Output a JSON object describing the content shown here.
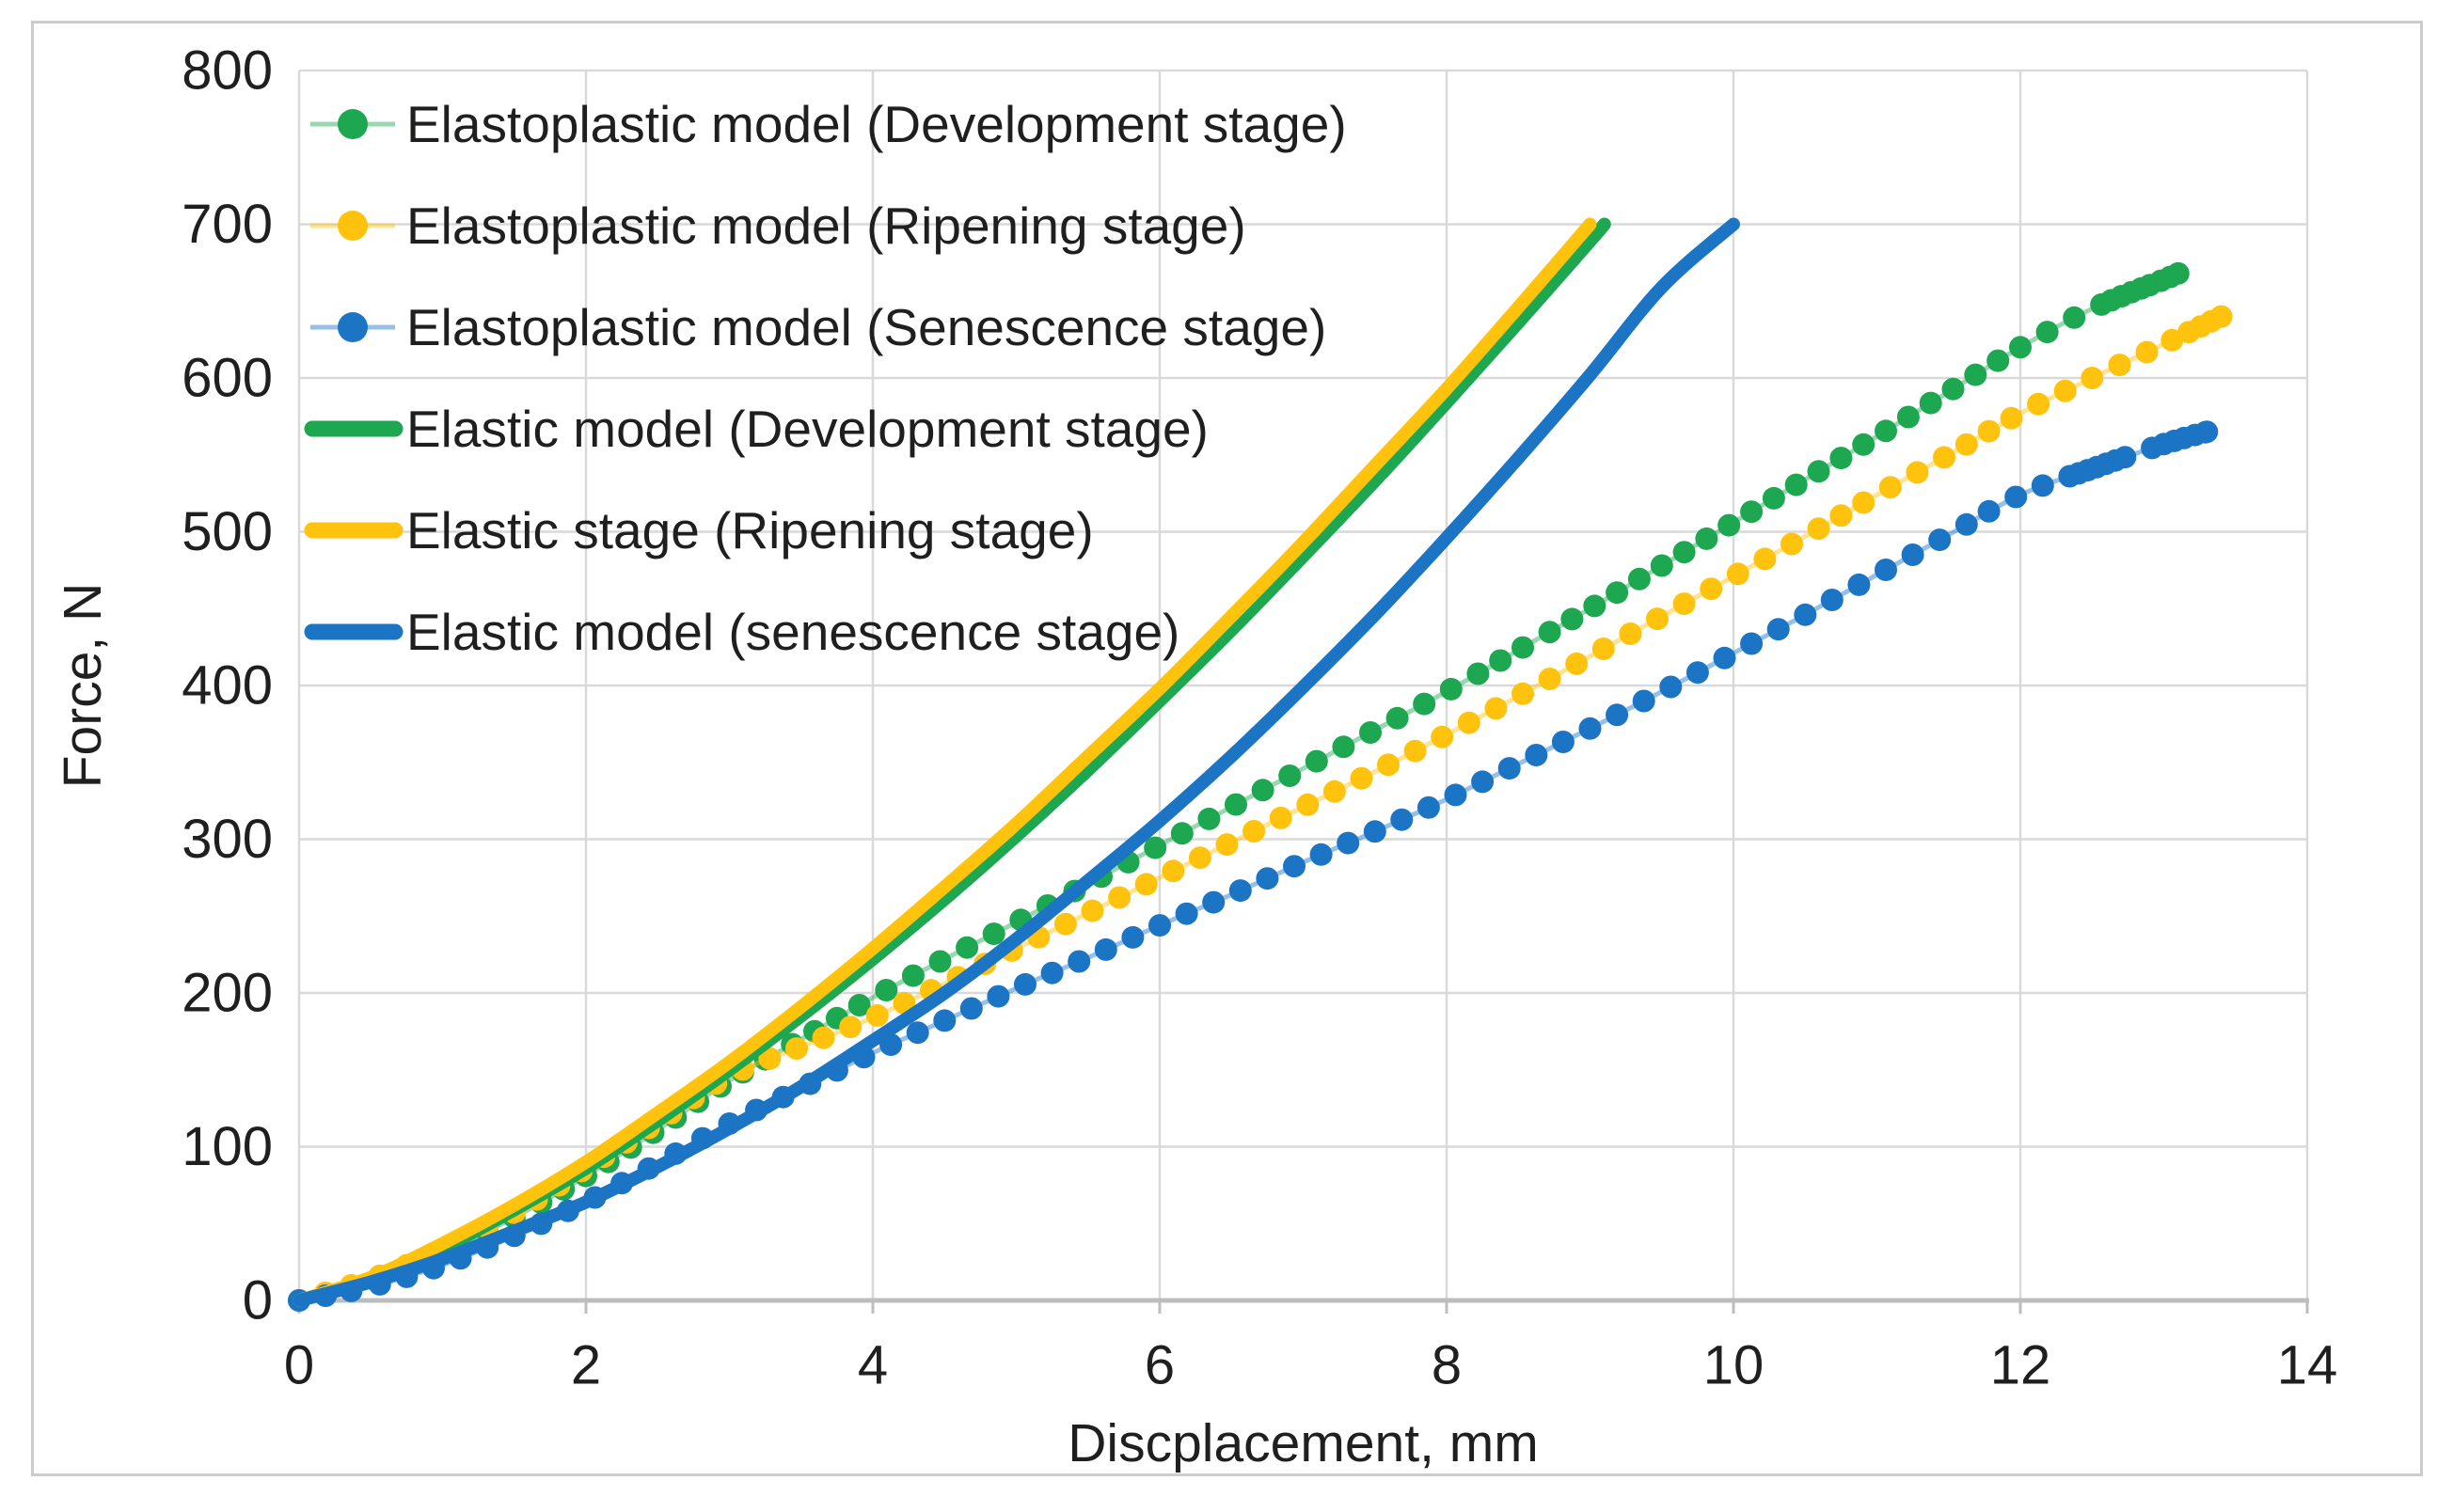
{
  "figure": {
    "border_color": "#CCCCCC",
    "background": "#FFFFFF"
  },
  "chart_data": {
    "type": "line",
    "title": "",
    "xlabel": "Discplacement, mm",
    "ylabel": "Force, N",
    "xlim": [
      0,
      14
    ],
    "ylim": [
      0,
      800
    ],
    "xticks": [
      0,
      2,
      4,
      6,
      8,
      10,
      12,
      14
    ],
    "yticks": [
      0,
      100,
      200,
      300,
      400,
      500,
      600,
      700,
      800
    ],
    "grid": true,
    "legend_position": "top-left-inside",
    "colors": {
      "development": "#1CA750",
      "ripening": "#FFC20D",
      "senescence": "#1B74C4",
      "grid": "#D9D9D9",
      "axis": "#BDBDBD",
      "text": "#1F1F1F"
    },
    "series": [
      {
        "name": "Elastoplastic model (Development stage)",
        "style": "dotted",
        "color_key": "development",
        "x": [
          0,
          0.5,
          1,
          1.5,
          2,
          2.5,
          3,
          3.5,
          4,
          4.5,
          5,
          5.5,
          6,
          6.5,
          7,
          7.5,
          8,
          8.5,
          9,
          9.5,
          10,
          10.5,
          11,
          11.5,
          12,
          12.5,
          13,
          13.1
        ],
        "y": [
          0,
          13,
          31,
          54,
          81,
          111,
          143,
          170,
          197,
          222,
          246,
          271,
          296,
          321,
          346,
          371,
          396,
          423,
          450,
          478,
          506,
          534,
          562,
          591,
          620,
          645,
          664,
          668
        ],
        "cluster_x_ranges": [
          [
            12.55,
            13.1
          ]
        ]
      },
      {
        "name": "Elastoplastic model (Ripening stage)",
        "style": "dotted",
        "color_key": "ripening",
        "x": [
          0,
          0.5,
          1,
          1.5,
          2,
          2.5,
          3,
          3.5,
          4,
          4.5,
          5,
          5.5,
          6,
          6.5,
          7,
          7.5,
          8,
          8.5,
          9,
          9.5,
          10,
          10.5,
          11,
          11.5,
          12,
          12.5,
          13,
          13.4
        ],
        "y": [
          0,
          14,
          33,
          57,
          86,
          116,
          146,
          165,
          184,
          206,
          229,
          252,
          275,
          298,
          321,
          344,
          368,
          393,
          419,
          445,
          471,
          497,
          524,
          550,
          577,
          600,
          622,
          640
        ],
        "cluster_x_ranges": [
          [
            13.15,
            13.4
          ]
        ]
      },
      {
        "name": "Elastoplastic model (Senescence stage)",
        "style": "dotted",
        "color_key": "senescence",
        "x": [
          0,
          0.5,
          1,
          1.5,
          2,
          2.5,
          3,
          3.5,
          4,
          4.5,
          5,
          5.5,
          6,
          6.5,
          7,
          7.5,
          8,
          8.5,
          9,
          9.5,
          10,
          10.5,
          11,
          11.5,
          12,
          12.5,
          13,
          13.3
        ],
        "y": [
          0,
          9,
          23,
          42,
          64,
          89,
          115,
          138,
          161,
          182,
          203,
          223,
          244,
          264,
          285,
          305,
          326,
          349,
          372,
          396,
          421,
          446,
          472,
          498,
          524,
          541,
          557,
          565
        ],
        "cluster_x_ranges": [
          [
            12.35,
            12.75
          ],
          [
            12.95,
            13.3
          ]
        ]
      },
      {
        "name": "Elastic model (Development stage)",
        "style": "solid",
        "color_key": "development",
        "x": [
          0,
          0.5,
          1,
          1.5,
          2,
          2.5,
          3,
          3.5,
          4,
          4.5,
          5,
          5.5,
          6,
          6.5,
          7,
          7.5,
          8,
          8.5,
          9,
          9.1
        ],
        "y": [
          0,
          14,
          34,
          59,
          86,
          117,
          150,
          185,
          222,
          261,
          302,
          345,
          390,
          436,
          484,
          533,
          584,
          636,
          689,
          700
        ]
      },
      {
        "name": "Elastic stage (Ripening stage)",
        "style": "solid",
        "color_key": "ripening",
        "x": [
          0,
          0.5,
          1,
          1.5,
          2,
          2.5,
          3,
          3.5,
          4,
          4.5,
          5,
          5.5,
          6,
          6.5,
          7,
          7.5,
          8,
          8.5,
          9
        ],
        "y": [
          0,
          15,
          37,
          62,
          90,
          122,
          155,
          191,
          229,
          269,
          310,
          354,
          398,
          445,
          493,
          543,
          593,
          646,
          700
        ]
      },
      {
        "name": "Elastic model (senescence stage)",
        "style": "solid",
        "color_key": "senescence",
        "x": [
          0,
          0.5,
          1,
          1.5,
          2,
          2.5,
          3,
          3.5,
          4,
          4.5,
          5,
          5.5,
          6,
          6.5,
          7,
          7.5,
          8,
          8.5,
          9,
          9.5,
          10
        ],
        "y": [
          0,
          12,
          27,
          45,
          64,
          87,
          112,
          139,
          169,
          200,
          235,
          273,
          312,
          354,
          399,
          446,
          496,
          548,
          602,
          659,
          700
        ]
      }
    ]
  }
}
